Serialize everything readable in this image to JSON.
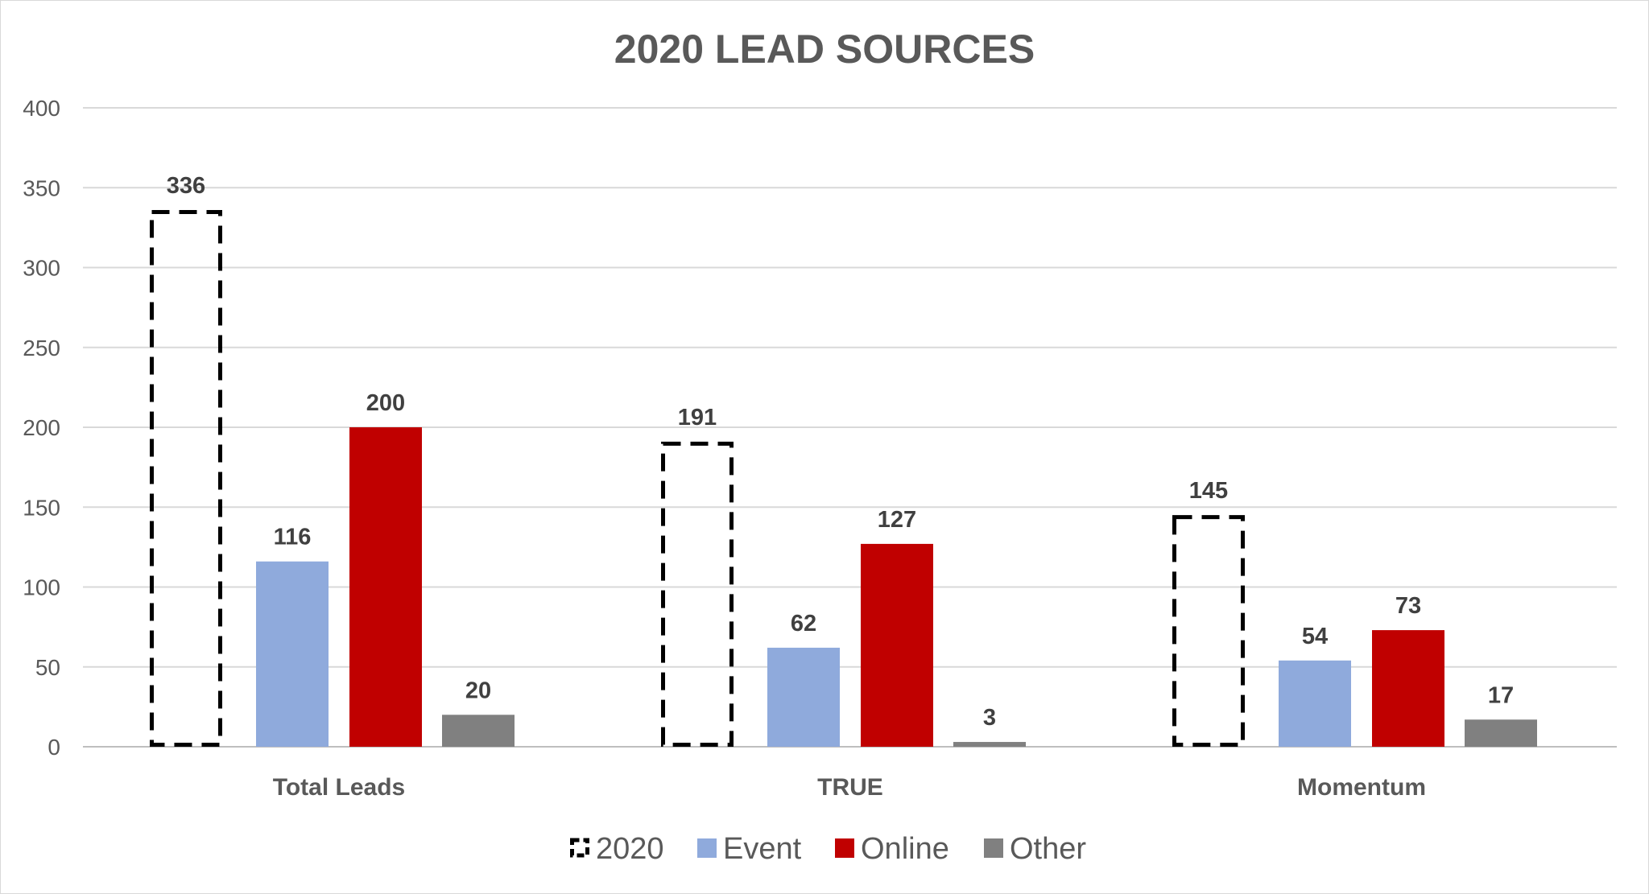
{
  "chart_data": {
    "type": "bar",
    "title": "2020 LEAD SOURCES",
    "categories": [
      "Total Leads",
      "TRUE",
      "Momentum"
    ],
    "series": [
      {
        "name": "2020",
        "values": [
          336,
          191,
          145
        ],
        "color": "#000000",
        "style": "dashed-outline"
      },
      {
        "name": "Event",
        "values": [
          116,
          62,
          54
        ],
        "color": "#8faadc"
      },
      {
        "name": "Online",
        "values": [
          200,
          127,
          73
        ],
        "color": "#c00000"
      },
      {
        "name": "Other",
        "values": [
          20,
          3,
          17
        ],
        "color": "#808080"
      }
    ],
    "y_ticks": [
      "0",
      "50",
      "100",
      "150",
      "200",
      "250",
      "300",
      "350",
      "400"
    ],
    "ylim": [
      0,
      400
    ],
    "xlabel": "",
    "ylabel": "",
    "grid": true,
    "legend_position": "bottom",
    "data_labels": true
  }
}
